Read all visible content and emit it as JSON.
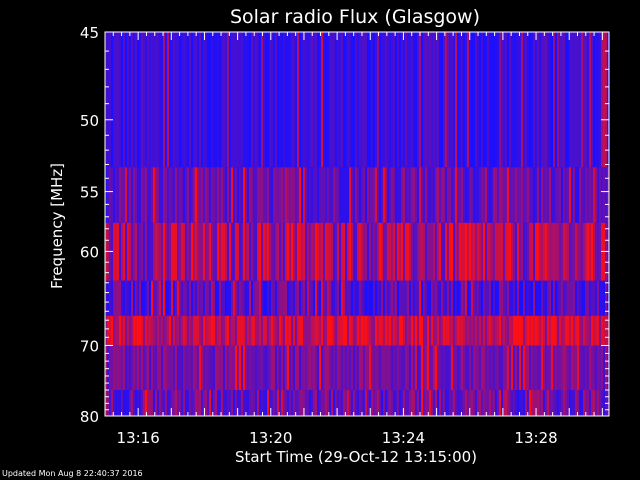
{
  "chart_data": {
    "type": "heatmap",
    "title": "Solar radio Flux (Glasgow)",
    "xlabel": "Start Time (29-Oct-12 13:15:00)",
    "ylabel_text": "Frequency ",
    "ylabel_unit": "MHz",
    "x_ticks": [
      "13:16",
      "13:20",
      "13:24",
      "13:28"
    ],
    "x_tick_minutes": [
      1,
      5,
      9,
      13
    ],
    "x_range_minutes": [
      0,
      15.2
    ],
    "y_ticks": [
      "45",
      "50",
      "55",
      "60",
      "70",
      "80"
    ],
    "y_tick_values": [
      45,
      50,
      55,
      60,
      70,
      80
    ],
    "y_range": [
      45,
      80
    ],
    "y_scale": "reciprocal",
    "colormap": [
      "#1a10ff",
      "#ff1010"
    ],
    "bands": [
      {
        "from": 45,
        "to": 53.2,
        "level": 0.12,
        "var": 0.18
      },
      {
        "from": 53.2,
        "to": 57.5,
        "level": 0.3,
        "var": 0.25
      },
      {
        "from": 57.5,
        "to": 62.8,
        "level": 0.55,
        "var": 0.4
      },
      {
        "from": 62.8,
        "to": 66.5,
        "level": 0.25,
        "var": 0.3
      },
      {
        "from": 66.5,
        "to": 70,
        "level": 0.7,
        "var": 0.3
      },
      {
        "from": 70,
        "to": 76,
        "level": 0.38,
        "var": 0.22
      },
      {
        "from": 76,
        "to": 80,
        "level": 0.35,
        "var": 0.3
      }
    ]
  },
  "footer": {
    "updated": "Updated Mon Aug  8 22:40:37 2016"
  }
}
